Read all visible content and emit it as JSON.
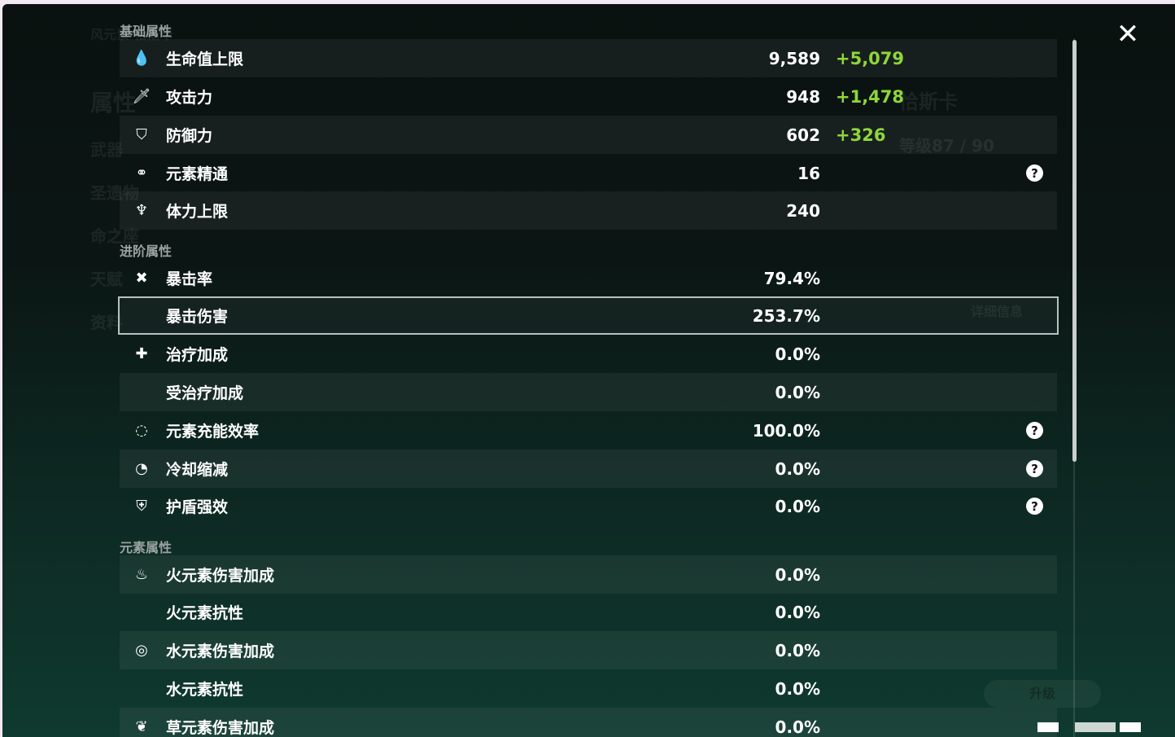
{
  "background": {
    "element_label": "风元素·恰斯卡",
    "menu": [
      "属性",
      "武器",
      "圣遗物",
      "命之座",
      "天赋",
      "资料"
    ],
    "name": "恰斯卡",
    "level": "等级87 / 90",
    "details": "详细信息",
    "upgrade": "升级"
  },
  "sections": [
    {
      "title": "基础属性",
      "rows": [
        {
          "icon": "hp-drop-icon",
          "glyph": "💧",
          "label": "生命值上限",
          "value": "9,589",
          "bonus": "+5,079",
          "style": "light"
        },
        {
          "icon": "sword-icon",
          "glyph": "🗡",
          "label": "攻击力",
          "value": "948",
          "bonus": "+1,478",
          "style": "dark"
        },
        {
          "icon": "shield-icon",
          "glyph": "⛉",
          "label": "防御力",
          "value": "602",
          "bonus": "+326",
          "style": "light"
        },
        {
          "icon": "elemental-mastery-icon",
          "glyph": "⚭",
          "label": "元素精通",
          "value": "16",
          "help": true,
          "style": "dark"
        },
        {
          "icon": "stamina-icon",
          "glyph": "♆",
          "label": "体力上限",
          "value": "240",
          "style": "light"
        }
      ]
    },
    {
      "title": "进阶属性",
      "rows": [
        {
          "icon": "crit-rate-icon",
          "glyph": "✖",
          "label": "暴击率",
          "value": "79.4%",
          "style": "dark"
        },
        {
          "icon": "crit-damage-icon",
          "glyph": "",
          "label": "暴击伤害",
          "value": "253.7%",
          "style": "sel"
        },
        {
          "icon": "healing-icon",
          "glyph": "✚",
          "label": "治疗加成",
          "value": "0.0%",
          "style": "dark"
        },
        {
          "label": "受治疗加成",
          "value": "0.0%",
          "style": "light"
        },
        {
          "icon": "energy-recharge-icon",
          "glyph": "◌",
          "label": "元素充能效率",
          "value": "100.0%",
          "help": true,
          "style": "dark"
        },
        {
          "icon": "cooldown-icon",
          "glyph": "◔",
          "label": "冷却缩减",
          "value": "0.0%",
          "help": true,
          "style": "light"
        },
        {
          "icon": "shield-strength-icon",
          "glyph": "⛨",
          "label": "护盾强效",
          "value": "0.0%",
          "help": true,
          "style": "dark"
        }
      ]
    },
    {
      "title": "元素属性",
      "rows": [
        {
          "icon": "pyro-icon",
          "glyph": "♨",
          "label": "火元素伤害加成",
          "value": "0.0%",
          "style": "light"
        },
        {
          "label": "火元素抗性",
          "value": "0.0%",
          "style": "dark"
        },
        {
          "icon": "hydro-icon",
          "glyph": "◎",
          "label": "水元素伤害加成",
          "value": "0.0%",
          "style": "light"
        },
        {
          "label": "水元素抗性",
          "value": "0.0%",
          "style": "dark"
        },
        {
          "icon": "dendro-icon",
          "glyph": "❦",
          "label": "草元素伤害加成",
          "value": "0.0%",
          "style": "light"
        }
      ]
    }
  ],
  "help_glyph": "?",
  "close_glyph": "✕"
}
